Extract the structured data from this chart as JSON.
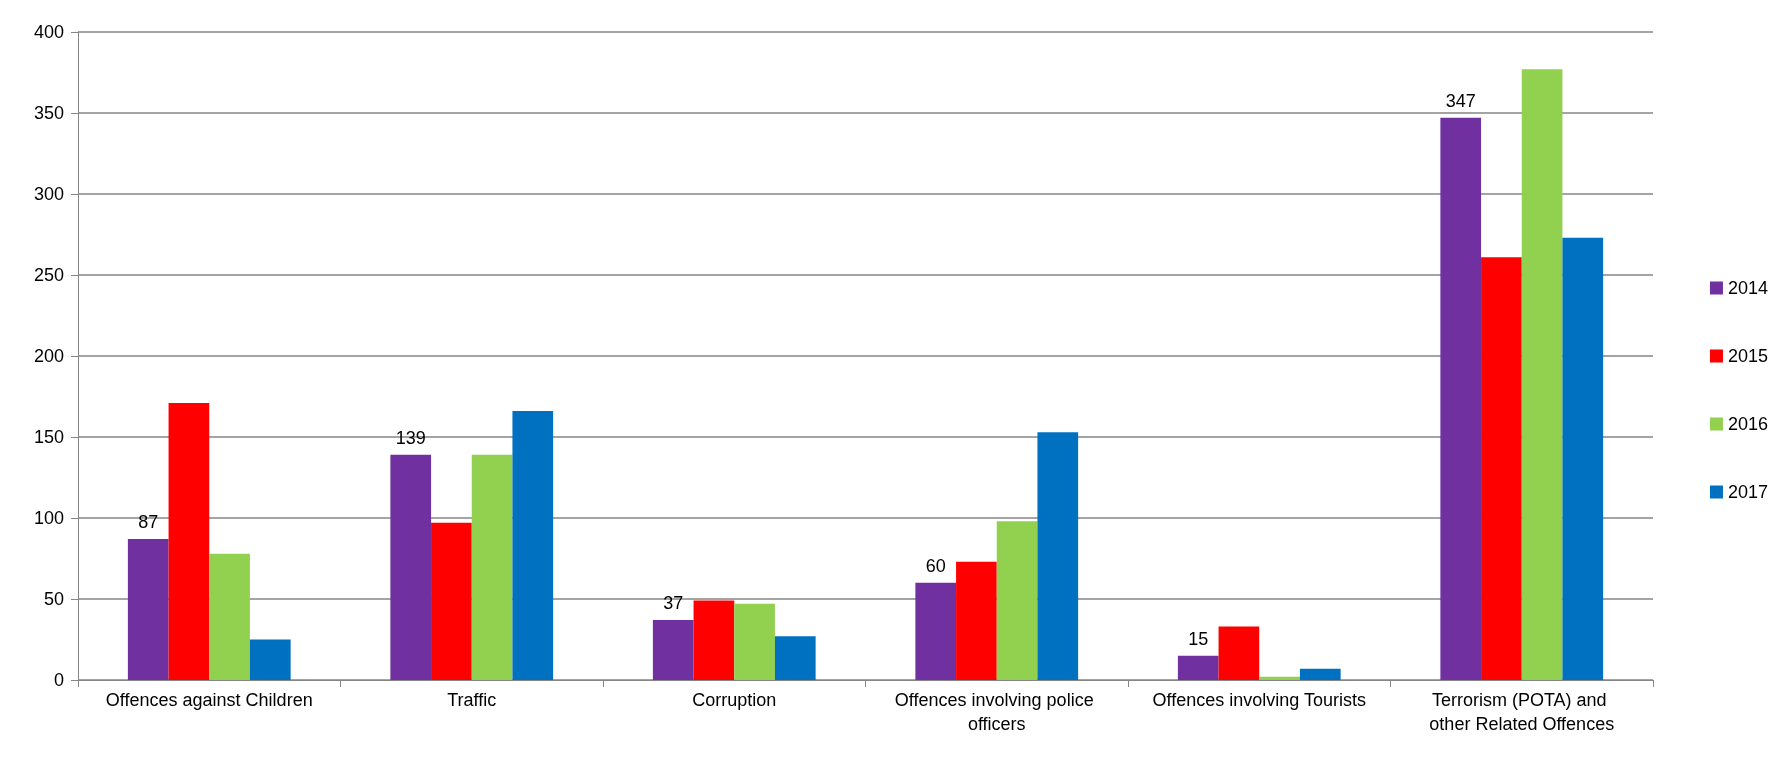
{
  "chart_data": {
    "type": "bar",
    "categories": [
      "Offences against Children",
      "Traffic",
      "Corruption",
      "Offences involving police officers",
      "Offences involving Tourists",
      "Terrorism (POTA) and other Related Offences"
    ],
    "series": [
      {
        "name": "2014",
        "color": "#7030a0",
        "values": [
          87,
          139,
          37,
          60,
          15,
          347
        ],
        "value_labels": [
          "87",
          "139",
          "37",
          "60",
          "15",
          "347"
        ]
      },
      {
        "name": "2015",
        "color": "#ff0000",
        "values": [
          171,
          97,
          49,
          73,
          33,
          261
        ]
      },
      {
        "name": "2016",
        "color": "#92d050",
        "values": [
          78,
          139,
          47,
          98,
          2,
          377
        ]
      },
      {
        "name": "2017",
        "color": "#0070c0",
        "values": [
          25,
          166,
          27,
          153,
          7,
          273
        ]
      }
    ],
    "ylim": [
      0,
      400
    ],
    "yticks": [
      0,
      50,
      100,
      150,
      200,
      250,
      300,
      350,
      400
    ],
    "grid": "y",
    "legend": "right"
  }
}
